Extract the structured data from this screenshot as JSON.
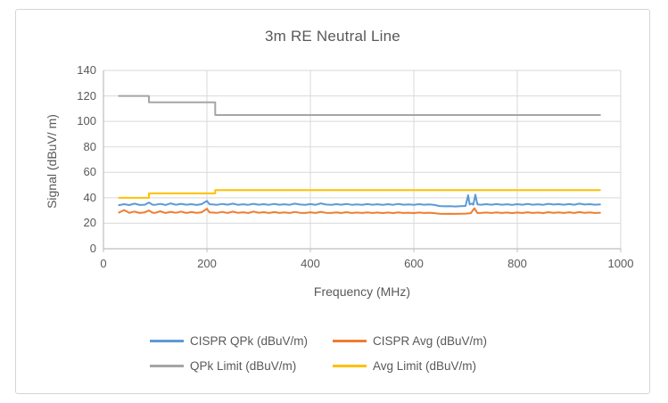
{
  "chart_data": {
    "type": "line",
    "title": "3m RE Neutral Line",
    "xlabel": "Frequency (MHz)",
    "ylabel": "Signal (dBuV/ m)",
    "xlim": [
      0,
      1000
    ],
    "ylim": [
      0,
      140
    ],
    "x_ticks": [
      0,
      200,
      400,
      600,
      800,
      1000
    ],
    "y_ticks": [
      0,
      20,
      40,
      60,
      80,
      100,
      120,
      140
    ],
    "grid": "both",
    "legend_position": "bottom",
    "colors": {
      "grid": "#d9d9d9",
      "axis": "#bfbfbf",
      "text": "#595959"
    },
    "series": [
      {
        "name": "CISPR QPk (dBuV/m)",
        "color": "#5b9bd5",
        "points": [
          [
            30,
            34.2
          ],
          [
            40,
            35.0
          ],
          [
            50,
            34.3
          ],
          [
            60,
            35.4
          ],
          [
            70,
            34.4
          ],
          [
            80,
            34.6
          ],
          [
            88,
            36.3
          ],
          [
            95,
            34.6
          ],
          [
            100,
            34.5
          ],
          [
            110,
            35.2
          ],
          [
            120,
            34.4
          ],
          [
            130,
            35.6
          ],
          [
            140,
            34.5
          ],
          [
            150,
            35.3
          ],
          [
            160,
            34.6
          ],
          [
            170,
            35.0
          ],
          [
            180,
            34.4
          ],
          [
            190,
            35.1
          ],
          [
            200,
            37.6
          ],
          [
            205,
            34.9
          ],
          [
            210,
            34.8
          ],
          [
            220,
            34.5
          ],
          [
            230,
            35.2
          ],
          [
            240,
            34.6
          ],
          [
            250,
            35.4
          ],
          [
            260,
            34.5
          ],
          [
            270,
            34.9
          ],
          [
            280,
            34.5
          ],
          [
            290,
            35.3
          ],
          [
            300,
            34.6
          ],
          [
            310,
            35.0
          ],
          [
            320,
            34.5
          ],
          [
            330,
            35.2
          ],
          [
            340,
            34.6
          ],
          [
            350,
            34.9
          ],
          [
            360,
            34.5
          ],
          [
            370,
            35.4
          ],
          [
            380,
            34.7
          ],
          [
            390,
            34.5
          ],
          [
            400,
            35.1
          ],
          [
            410,
            34.5
          ],
          [
            420,
            35.6
          ],
          [
            430,
            34.7
          ],
          [
            440,
            34.5
          ],
          [
            450,
            35.0
          ],
          [
            460,
            34.6
          ],
          [
            470,
            35.2
          ],
          [
            480,
            34.5
          ],
          [
            490,
            34.8
          ],
          [
            500,
            34.5
          ],
          [
            510,
            35.1
          ],
          [
            520,
            34.6
          ],
          [
            530,
            34.9
          ],
          [
            540,
            34.5
          ],
          [
            550,
            35.0
          ],
          [
            560,
            34.5
          ],
          [
            570,
            35.2
          ],
          [
            580,
            34.6
          ],
          [
            590,
            34.8
          ],
          [
            600,
            34.5
          ],
          [
            610,
            35.0
          ],
          [
            620,
            34.6
          ],
          [
            630,
            34.8
          ],
          [
            640,
            34.4
          ],
          [
            650,
            33.5
          ],
          [
            660,
            33.3
          ],
          [
            670,
            33.4
          ],
          [
            680,
            33.2
          ],
          [
            690,
            33.4
          ],
          [
            700,
            33.6
          ],
          [
            705,
            42.0
          ],
          [
            708,
            34.8
          ],
          [
            712,
            35.5
          ],
          [
            715,
            34.6
          ],
          [
            719,
            42.4
          ],
          [
            723,
            34.8
          ],
          [
            730,
            34.6
          ],
          [
            740,
            35.0
          ],
          [
            750,
            34.6
          ],
          [
            760,
            35.1
          ],
          [
            770,
            34.6
          ],
          [
            780,
            34.9
          ],
          [
            790,
            34.5
          ],
          [
            800,
            35.0
          ],
          [
            810,
            34.6
          ],
          [
            820,
            35.2
          ],
          [
            830,
            34.6
          ],
          [
            840,
            34.9
          ],
          [
            850,
            34.5
          ],
          [
            860,
            35.3
          ],
          [
            870,
            34.7
          ],
          [
            880,
            35.0
          ],
          [
            890,
            34.6
          ],
          [
            900,
            35.1
          ],
          [
            910,
            34.6
          ],
          [
            920,
            35.4
          ],
          [
            930,
            34.7
          ],
          [
            940,
            35.0
          ],
          [
            950,
            34.6
          ],
          [
            960,
            34.8
          ]
        ]
      },
      {
        "name": "CISPR Avg (dBuV/m)",
        "color": "#ed7d31",
        "points": [
          [
            30,
            28.4
          ],
          [
            40,
            30.4
          ],
          [
            50,
            28.2
          ],
          [
            60,
            29.2
          ],
          [
            70,
            28.1
          ],
          [
            80,
            28.6
          ],
          [
            88,
            30.0
          ],
          [
            95,
            28.3
          ],
          [
            100,
            28.2
          ],
          [
            110,
            29.4
          ],
          [
            120,
            28.1
          ],
          [
            130,
            29.0
          ],
          [
            140,
            28.2
          ],
          [
            150,
            29.2
          ],
          [
            160,
            28.1
          ],
          [
            170,
            28.8
          ],
          [
            180,
            28.2
          ],
          [
            190,
            28.6
          ],
          [
            200,
            31.4
          ],
          [
            205,
            28.5
          ],
          [
            210,
            28.4
          ],
          [
            220,
            28.2
          ],
          [
            230,
            28.9
          ],
          [
            240,
            28.1
          ],
          [
            250,
            29.1
          ],
          [
            260,
            28.2
          ],
          [
            270,
            28.6
          ],
          [
            280,
            28.1
          ],
          [
            290,
            29.2
          ],
          [
            300,
            28.3
          ],
          [
            310,
            28.7
          ],
          [
            320,
            28.1
          ],
          [
            330,
            28.8
          ],
          [
            340,
            28.2
          ],
          [
            350,
            28.5
          ],
          [
            360,
            28.1
          ],
          [
            370,
            28.9
          ],
          [
            380,
            28.2
          ],
          [
            390,
            28.1
          ],
          [
            400,
            28.6
          ],
          [
            410,
            28.1
          ],
          [
            420,
            29.0
          ],
          [
            430,
            28.2
          ],
          [
            440,
            28.1
          ],
          [
            450,
            28.5
          ],
          [
            460,
            28.1
          ],
          [
            470,
            28.7
          ],
          [
            480,
            28.1
          ],
          [
            490,
            28.4
          ],
          [
            500,
            28.1
          ],
          [
            510,
            28.5
          ],
          [
            520,
            28.1
          ],
          [
            530,
            28.4
          ],
          [
            540,
            28.0
          ],
          [
            550,
            28.4
          ],
          [
            560,
            28.0
          ],
          [
            570,
            28.5
          ],
          [
            580,
            28.1
          ],
          [
            590,
            28.3
          ],
          [
            600,
            28.0
          ],
          [
            610,
            28.4
          ],
          [
            620,
            28.1
          ],
          [
            630,
            28.3
          ],
          [
            640,
            27.9
          ],
          [
            650,
            27.5
          ],
          [
            660,
            27.4
          ],
          [
            670,
            27.5
          ],
          [
            680,
            27.4
          ],
          [
            690,
            27.5
          ],
          [
            700,
            27.6
          ],
          [
            710,
            27.9
          ],
          [
            717,
            31.8
          ],
          [
            723,
            28.1
          ],
          [
            730,
            28.1
          ],
          [
            740,
            28.4
          ],
          [
            750,
            28.1
          ],
          [
            760,
            28.5
          ],
          [
            770,
            28.1
          ],
          [
            780,
            28.4
          ],
          [
            790,
            28.0
          ],
          [
            800,
            28.4
          ],
          [
            810,
            28.1
          ],
          [
            820,
            28.6
          ],
          [
            830,
            28.1
          ],
          [
            840,
            28.4
          ],
          [
            850,
            28.0
          ],
          [
            860,
            28.7
          ],
          [
            870,
            28.2
          ],
          [
            880,
            28.5
          ],
          [
            890,
            28.1
          ],
          [
            900,
            28.6
          ],
          [
            910,
            28.1
          ],
          [
            920,
            28.8
          ],
          [
            930,
            28.2
          ],
          [
            940,
            28.5
          ],
          [
            950,
            28.1
          ],
          [
            960,
            28.3
          ]
        ]
      },
      {
        "name": "QPk Limit (dBuV/m)",
        "color": "#a5a5a5",
        "points": [
          [
            30,
            120
          ],
          [
            88,
            120
          ],
          [
            88,
            115
          ],
          [
            216,
            115
          ],
          [
            216,
            105
          ],
          [
            960,
            105
          ]
        ]
      },
      {
        "name": "Avg Limit (dBuV/m)",
        "color": "#ffc000",
        "points": [
          [
            30,
            40
          ],
          [
            88,
            40
          ],
          [
            88,
            43.5
          ],
          [
            216,
            43.5
          ],
          [
            216,
            46
          ],
          [
            960,
            46
          ]
        ]
      }
    ]
  }
}
